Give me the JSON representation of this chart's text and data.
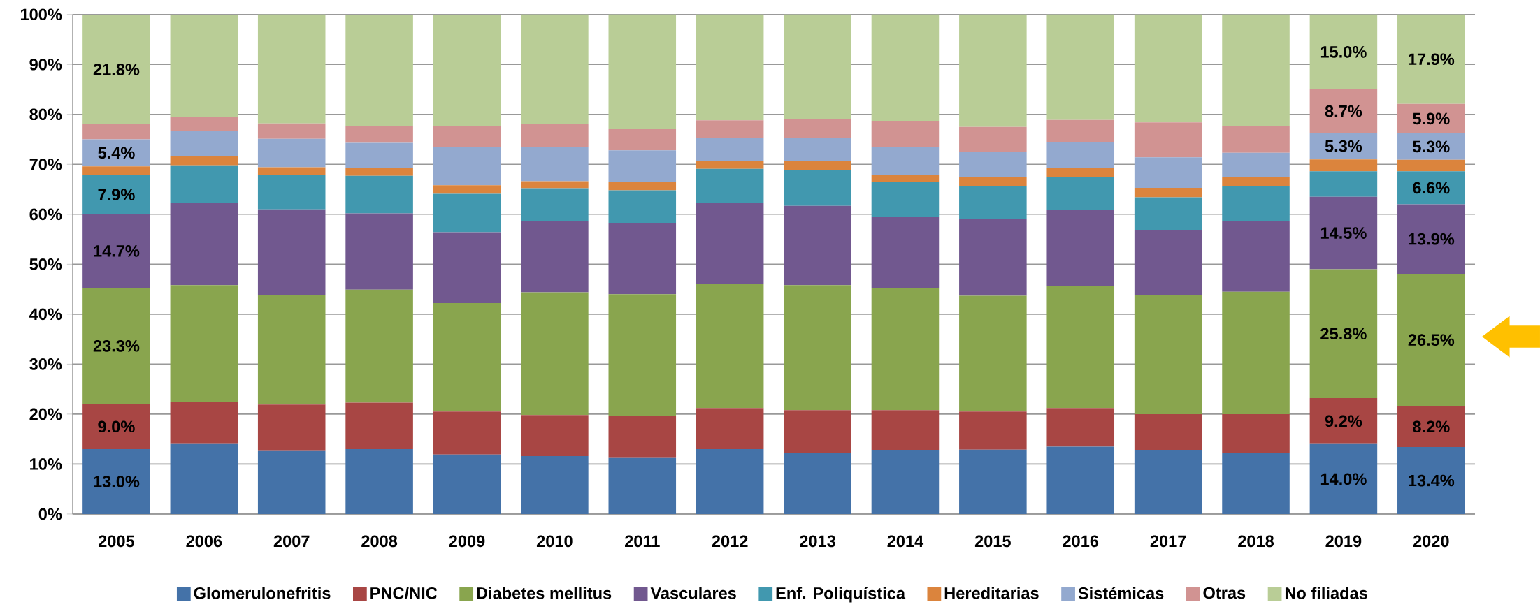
{
  "chart_data": {
    "type": "bar",
    "stacked": true,
    "grid": "y",
    "legend": "bottom",
    "categories": [
      "2005",
      "2006",
      "2007",
      "2008",
      "2009",
      "2010",
      "2011",
      "2012",
      "2013",
      "2014",
      "2015",
      "2016",
      "2017",
      "2018",
      "2019",
      "2020"
    ],
    "ylim": [
      0,
      100
    ],
    "yticks": [
      {
        "value": 0,
        "label": "0%"
      },
      {
        "value": 10,
        "label": "10%"
      },
      {
        "value": 20,
        "label": "20%"
      },
      {
        "value": 30,
        "label": "30%"
      },
      {
        "value": 40,
        "label": "40%"
      },
      {
        "value": 50,
        "label": "50%"
      },
      {
        "value": 60,
        "label": "60%"
      },
      {
        "value": 70,
        "label": "70%"
      },
      {
        "value": 80,
        "label": "80%"
      },
      {
        "value": 90,
        "label": "90%"
      },
      {
        "value": 100,
        "label": "100%"
      }
    ],
    "series": [
      {
        "name": "Glomerulonefritis",
        "color": "#4472a8",
        "values": [
          13.0,
          14.0,
          12.6,
          13.0,
          11.9,
          11.6,
          11.2,
          13.0,
          12.2,
          12.8,
          12.9,
          13.5,
          12.8,
          12.2,
          14.0,
          13.4
        ],
        "value_labels": [
          "13.0%",
          null,
          null,
          null,
          null,
          null,
          null,
          null,
          null,
          null,
          null,
          null,
          null,
          null,
          "14.0%",
          "13.4%"
        ]
      },
      {
        "name": "PNC/NIC",
        "color": "#a84644",
        "values": [
          9.0,
          8.4,
          9.3,
          9.3,
          8.6,
          8.2,
          8.5,
          8.2,
          8.6,
          8.0,
          7.6,
          7.7,
          7.2,
          7.8,
          9.2,
          8.2
        ],
        "value_labels": [
          "9.0%",
          null,
          null,
          null,
          null,
          null,
          null,
          null,
          null,
          null,
          null,
          null,
          null,
          null,
          "9.2%",
          "8.2%"
        ]
      },
      {
        "name": "Diabetes mellitus",
        "color": "#89a54e",
        "values": [
          23.3,
          23.4,
          22.0,
          22.6,
          21.7,
          24.6,
          24.3,
          24.9,
          25.0,
          24.4,
          23.2,
          24.4,
          23.9,
          24.5,
          25.8,
          26.5
        ],
        "value_labels": [
          "23.3%",
          null,
          null,
          null,
          null,
          null,
          null,
          null,
          null,
          null,
          null,
          null,
          null,
          null,
          "25.8%",
          "26.5%"
        ]
      },
      {
        "name": "Vasculares",
        "color": "#71588f",
        "values": [
          14.7,
          16.4,
          17.1,
          15.3,
          14.2,
          14.2,
          14.2,
          16.1,
          15.9,
          14.2,
          15.3,
          15.3,
          12.9,
          14.1,
          14.5,
          13.9
        ],
        "value_labels": [
          "14.7%",
          null,
          null,
          null,
          null,
          null,
          null,
          null,
          null,
          null,
          null,
          null,
          null,
          null,
          "14.5%",
          "13.9%"
        ]
      },
      {
        "name": "Enf. Poliquística",
        "color": "#4198af",
        "values": [
          7.9,
          7.6,
          6.8,
          7.5,
          7.7,
          6.6,
          6.6,
          6.9,
          7.2,
          7.0,
          6.7,
          6.5,
          6.6,
          7.0,
          5.1,
          6.6
        ],
        "value_labels": [
          "7.9%",
          null,
          null,
          null,
          null,
          null,
          null,
          null,
          null,
          null,
          null,
          null,
          null,
          null,
          null,
          "6.6%"
        ]
      },
      {
        "name": "Hereditarias",
        "color": "#db843d",
        "values": [
          1.7,
          1.9,
          1.6,
          1.6,
          1.7,
          1.4,
          1.6,
          1.5,
          1.7,
          1.5,
          1.8,
          1.9,
          1.9,
          1.9,
          2.4,
          2.3
        ]
      },
      {
        "name": "Sistémicas",
        "color": "#93a9cf",
        "values": [
          5.4,
          5.0,
          5.7,
          5.0,
          7.6,
          6.9,
          6.4,
          4.6,
          4.7,
          5.5,
          4.9,
          5.1,
          6.1,
          4.8,
          5.3,
          5.3
        ],
        "value_labels": [
          "5.4%",
          null,
          null,
          null,
          null,
          null,
          null,
          null,
          null,
          null,
          null,
          null,
          null,
          null,
          "5.3%",
          "5.3%"
        ]
      },
      {
        "name": "Otras",
        "color": "#d19392",
        "values": [
          3.1,
          2.7,
          3.1,
          3.4,
          4.3,
          4.5,
          4.3,
          3.6,
          3.8,
          5.3,
          5.1,
          4.5,
          7.0,
          5.3,
          8.7,
          5.9
        ],
        "value_labels": [
          null,
          null,
          null,
          null,
          null,
          null,
          null,
          null,
          null,
          null,
          null,
          null,
          null,
          null,
          "8.7%",
          "5.9%"
        ]
      },
      {
        "name": "No filiadas",
        "color": "#b9cd96",
        "values": [
          21.8,
          20.5,
          21.8,
          22.2,
          22.2,
          22.0,
          22.9,
          21.2,
          20.9,
          21.3,
          22.5,
          21.1,
          21.6,
          22.4,
          15.0,
          17.9
        ],
        "value_labels": [
          "21.8%",
          null,
          null,
          null,
          null,
          null,
          null,
          null,
          null,
          null,
          null,
          null,
          null,
          null,
          "15.0%",
          "17.9%"
        ]
      }
    ]
  }
}
